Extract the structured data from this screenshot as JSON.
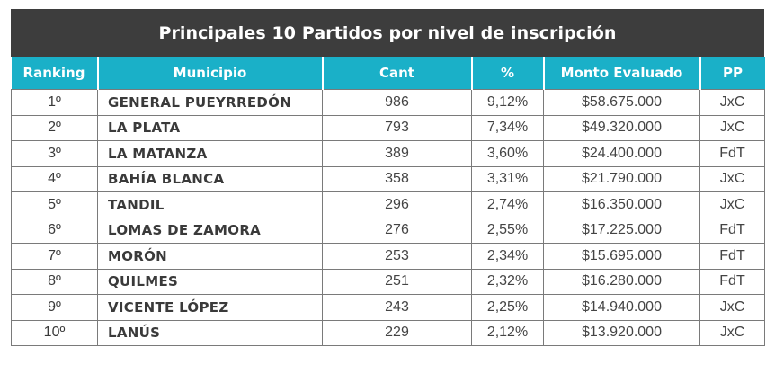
{
  "title": "Principales 10 Partidos por nivel de inscripción",
  "colors": {
    "title_bg": "#3d3d3d",
    "header_bg": "#1ab0c8",
    "border": "#7a7a7a"
  },
  "columns": [
    "Ranking",
    "Municipio",
    "Cant",
    "%",
    "Monto Evaluado",
    "PP"
  ],
  "rows": [
    {
      "ranking": "1º",
      "municipio": "GENERAL PUEYRREDÓN",
      "cant": "986",
      "pct": "9,12%",
      "monto": "$58.675.000",
      "pp": "JxC"
    },
    {
      "ranking": "2º",
      "municipio": "LA PLATA",
      "cant": "793",
      "pct": "7,34%",
      "monto": "$49.320.000",
      "pp": "JxC"
    },
    {
      "ranking": "3º",
      "municipio": "LA MATANZA",
      "cant": "389",
      "pct": "3,60%",
      "monto": "$24.400.000",
      "pp": "FdT"
    },
    {
      "ranking": "4º",
      "municipio": "BAHÍA BLANCA",
      "cant": "358",
      "pct": "3,31%",
      "monto": "$21.790.000",
      "pp": "JxC"
    },
    {
      "ranking": "5º",
      "municipio": "TANDIL",
      "cant": "296",
      "pct": "2,74%",
      "monto": "$16.350.000",
      "pp": "JxC"
    },
    {
      "ranking": "6º",
      "municipio": "LOMAS DE ZAMORA",
      "cant": "276",
      "pct": "2,55%",
      "monto": "$17.225.000",
      "pp": "FdT"
    },
    {
      "ranking": "7º",
      "municipio": "MORÓN",
      "cant": "253",
      "pct": "2,34%",
      "monto": "$15.695.000",
      "pp": "FdT"
    },
    {
      "ranking": "8º",
      "municipio": "QUILMES",
      "cant": "251",
      "pct": "2,32%",
      "monto": "$16.280.000",
      "pp": "FdT"
    },
    {
      "ranking": "9º",
      "municipio": "VICENTE LÓPEZ",
      "cant": "243",
      "pct": "2,25%",
      "monto": "$14.940.000",
      "pp": "JxC"
    },
    {
      "ranking": "10º",
      "municipio": "LANÚS",
      "cant": "229",
      "pct": "2,12%",
      "monto": "$13.920.000",
      "pp": "JxC"
    }
  ]
}
